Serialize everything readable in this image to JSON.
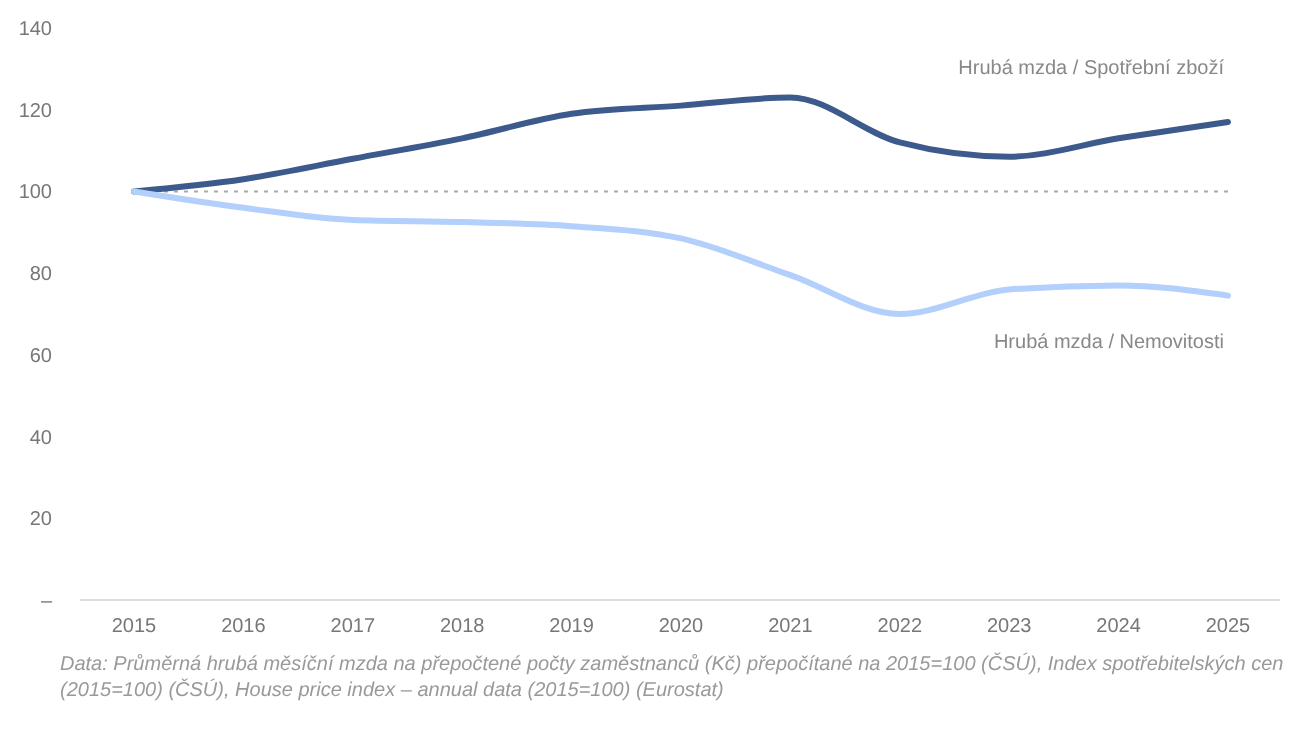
{
  "chart_data": {
    "type": "line",
    "categories": [
      "2015",
      "2016",
      "2017",
      "2018",
      "2019",
      "2020",
      "2021",
      "2022",
      "2023",
      "2024",
      "2025"
    ],
    "series": [
      {
        "name": "Hrubá mzda / Spotřební zboží",
        "color": "#3d5a8c",
        "values": [
          100,
          103,
          108,
          113,
          119,
          121,
          123,
          112,
          108.5,
          113,
          117
        ]
      },
      {
        "name": "Hrubá mzda / Nemovitosti",
        "color": "#b3cffb",
        "values": [
          100,
          96,
          93,
          92.5,
          91.5,
          88.5,
          79.5,
          70,
          76,
          77,
          74.5
        ]
      }
    ],
    "ylim": [
      0,
      140
    ],
    "yticks": [
      {
        "value": 0,
        "label": "–"
      },
      20,
      40,
      60,
      80,
      100,
      120,
      140
    ],
    "ref_lines": [
      {
        "axis": "y",
        "value": 100,
        "line_style": "dotted",
        "color": "#aaaaaa"
      }
    ],
    "grid": false,
    "legend": false,
    "marker": "none",
    "line_style": "solid",
    "annotations": [
      "Data: Průměrná hrubá měsíční mzda na přepočtené počty zaměstnanců (Kč) přepočítané na 2015=100 (ČSÚ), Index spotřebitelských cen (2015=100) (ČSÚ), House price index – annual data (2015=100) (Eurostat)"
    ]
  }
}
